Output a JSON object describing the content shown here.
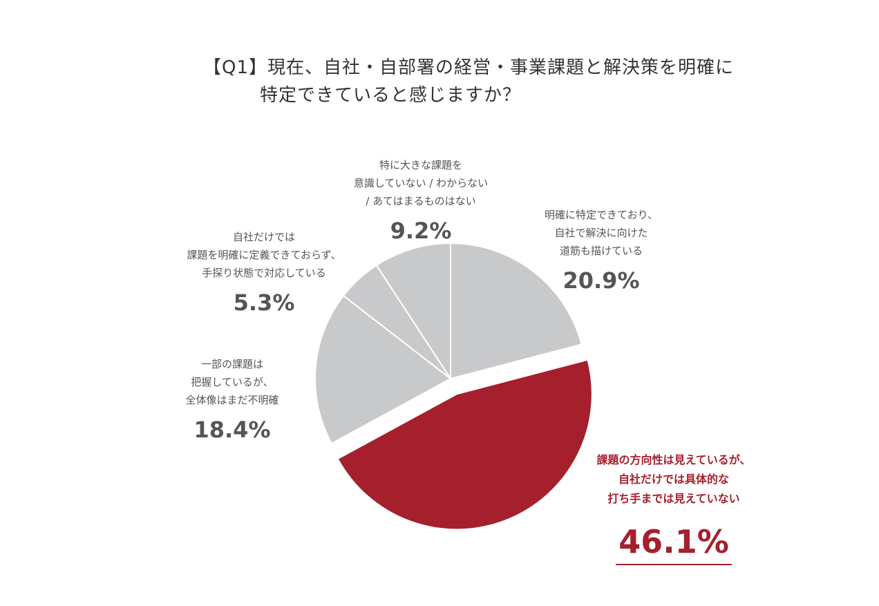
{
  "title": {
    "line1": "【Q1】現在、自社・自部署の経営・事業課題と解決策を明確に",
    "line2": "特定できていると感じますか？"
  },
  "chart_data": {
    "type": "pie",
    "start_angle_deg": 0,
    "direction": "clockwise",
    "slices": [
      {
        "label": [
          "明確に特定できており、",
          "自社で解決に向けた",
          "道筋も描けている"
        ],
        "value": 20.9,
        "display": "20.9%",
        "color": "#c8c9cb",
        "exploded": false
      },
      {
        "label": [
          "課題の方向性は見えているが、",
          "自社だけでは具体的な",
          "打ち手までは見えていない"
        ],
        "value": 46.1,
        "display": "46.1%",
        "color": "#a51f2d",
        "exploded": true
      },
      {
        "label": [
          "一部の課題は",
          "把握しているが、",
          "全体像はまだ不明確"
        ],
        "value": 18.4,
        "display": "18.4%",
        "color": "#c8c9cb",
        "exploded": false
      },
      {
        "label": [
          "自社だけでは",
          "課題を明確に定義できておらず、",
          "手探り状態で対応している"
        ],
        "value": 5.3,
        "display": "5.3%",
        "color": "#c8c9cb",
        "exploded": false
      },
      {
        "label": [
          "特に大きな課題を",
          "意識していない / わからない",
          "/ あてはまるものはない"
        ],
        "value": 9.2,
        "display": "9.2%",
        "color": "#c8c9cb",
        "exploded": false
      }
    ]
  }
}
